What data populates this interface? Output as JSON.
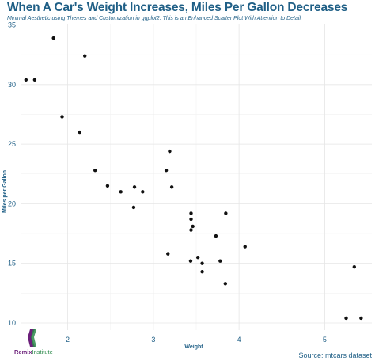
{
  "chart_data": {
    "type": "scatter",
    "title": "When A Car's Weight Increases, Miles Per Gallon Decreases",
    "subtitle": "Minimal Aesthetic using Themes and Customization in ggplot2. This is an Enhanced Scatter Plot With Attention to Detail.",
    "xlabel": "Weight",
    "ylabel": "Miles per Gallon",
    "caption": "Source: mtcars dataset",
    "xlim": [
      1.45,
      5.55
    ],
    "ylim": [
      9.4,
      35.1
    ],
    "xticks": [
      2,
      3,
      4,
      5
    ],
    "yticks": [
      10,
      15,
      20,
      25,
      30,
      35
    ],
    "grid": true,
    "point_color": "#111111",
    "x": [
      2.62,
      2.875,
      2.32,
      3.215,
      3.44,
      3.46,
      3.57,
      3.19,
      3.15,
      3.44,
      3.44,
      4.07,
      3.73,
      3.78,
      5.25,
      5.424,
      5.345,
      2.2,
      1.615,
      1.835,
      2.465,
      3.52,
      3.435,
      3.84,
      3.845,
      1.935,
      2.14,
      1.513,
      3.17,
      2.77,
      3.57,
      2.78
    ],
    "y": [
      21.0,
      21.0,
      22.8,
      21.4,
      18.7,
      18.1,
      14.3,
      24.4,
      22.8,
      19.2,
      17.8,
      16.4,
      17.3,
      15.2,
      10.4,
      10.4,
      14.7,
      32.4,
      30.4,
      33.9,
      21.5,
      15.5,
      15.2,
      13.3,
      19.2,
      27.3,
      26.0,
      30.4,
      15.8,
      19.7,
      15.0,
      21.4
    ]
  },
  "logo": {
    "part1": "Remix",
    "part2": "Institute"
  }
}
